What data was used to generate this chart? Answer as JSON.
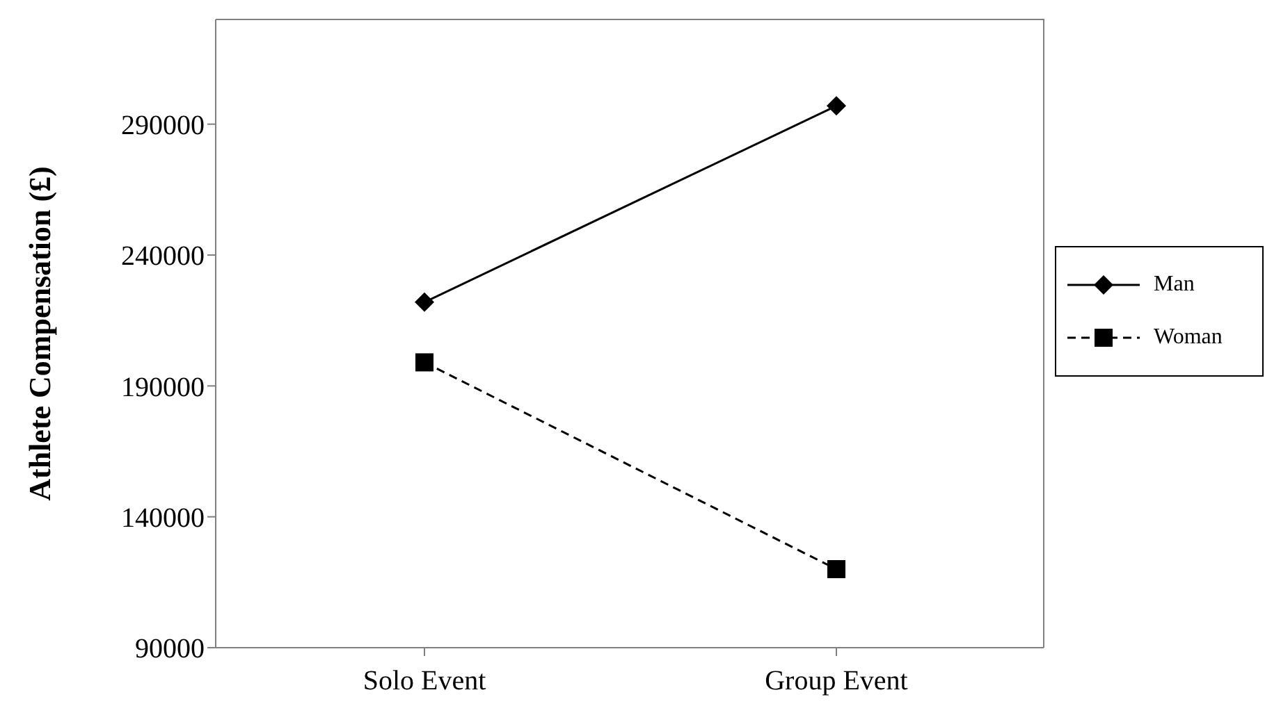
{
  "chart_data": {
    "type": "line",
    "ylabel": "Athlete Compensation (£)",
    "categories": [
      "Solo Event",
      "Group Event"
    ],
    "series": [
      {
        "name": "Man",
        "color": "#000000",
        "values": [
          222000,
          297000
        ],
        "marker": "diamond",
        "line_style": "solid"
      },
      {
        "name": "Woman",
        "color": "#000000",
        "values": [
          199000,
          120000
        ],
        "marker": "square",
        "line_style": "dashed"
      }
    ],
    "ylim": [
      90000,
      330000
    ],
    "yticks": [
      90000,
      140000,
      190000,
      240000,
      290000
    ],
    "grid": false,
    "legend": "right"
  }
}
